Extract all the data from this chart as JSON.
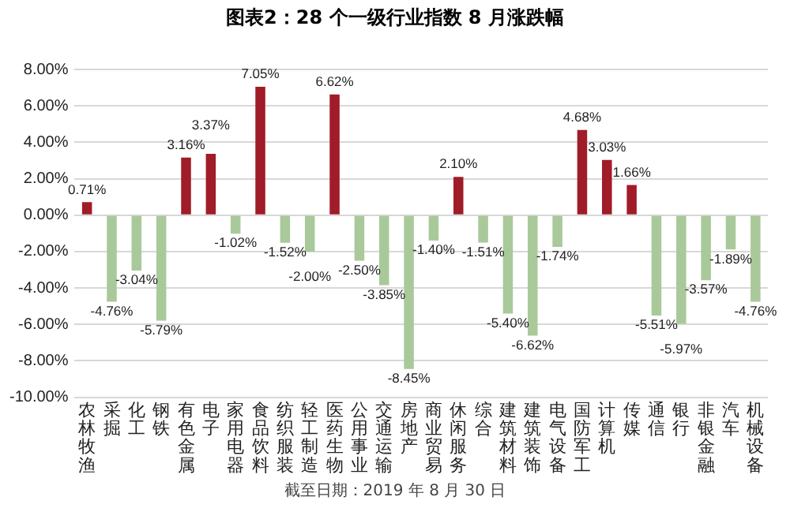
{
  "chart_data": {
    "type": "bar",
    "title": "图表2：28 个一级行业指数 8 月涨跌幅",
    "categories": [
      "农林牧渔",
      "采掘",
      "化工",
      "钢铁",
      "有色金属",
      "电子",
      "家用电器",
      "食品饮料",
      "纺织服装",
      "轻工制造",
      "医药生物",
      "公用事业",
      "交通运输",
      "房地产",
      "商业贸易",
      "休闲服务",
      "综合",
      "建筑材料",
      "建筑装饰",
      "电气设备",
      "国防军工",
      "计算机",
      "传媒",
      "通信",
      "银行",
      "非银金融",
      "汽车",
      "机械设备"
    ],
    "values": [
      0.71,
      -4.76,
      -3.04,
      -5.79,
      3.16,
      3.37,
      -1.02,
      7.05,
      -1.52,
      -2.0,
      6.62,
      -2.5,
      -3.85,
      -8.45,
      -1.4,
      2.1,
      -1.51,
      -5.4,
      -6.62,
      -1.74,
      4.68,
      3.03,
      1.66,
      -5.51,
      -5.97,
      -3.57,
      -1.89,
      -4.76
    ],
    "value_labels": [
      "0.71%",
      "-4.76%",
      "-3.04%",
      "-5.79%",
      "3.16%",
      "3.37%",
      "-1.02%",
      "7.05%",
      "-1.52%",
      "-2.00%",
      "6.62%",
      "-2.50%",
      "-3.85%",
      "-8.45%",
      "-1.40%",
      "2.10%",
      "-1.51%",
      "-5.40%",
      "-6.62%",
      "-1.74%",
      "4.68%",
      "3.03%",
      "1.66%",
      "-5.51%",
      "-5.97%",
      "-3.57%",
      "-1.89%",
      "-4.76%"
    ],
    "colors": [
      "#a01c28",
      "#a9c99a",
      "#a9c99a",
      "#a9c99a",
      "#a01c28",
      "#a01c28",
      "#a9c99a",
      "#a01c28",
      "#a9c99a",
      "#a9c99a",
      "#a01c28",
      "#a9c99a",
      "#a9c99a",
      "#a9c99a",
      "#a9c99a",
      "#a01c28",
      "#a9c99a",
      "#a9c99a",
      "#a9c99a",
      "#a9c99a",
      "#a01c28",
      "#a01c28",
      "#a01c28",
      "#a9c99a",
      "#a9c99a",
      "#a9c99a",
      "#a9c99a",
      "#a9c99a"
    ],
    "ylim": [
      -10,
      8
    ],
    "yticks": [
      {
        "value": -10,
        "label": "-10.00%"
      },
      {
        "value": -8,
        "label": "-8.00%"
      },
      {
        "value": -6,
        "label": "-6.00%"
      },
      {
        "value": -4,
        "label": "-4.00%"
      },
      {
        "value": -2,
        "label": "-2.00%"
      },
      {
        "value": 0,
        "label": "0.00%"
      },
      {
        "value": 2,
        "label": "2.00%"
      },
      {
        "value": 4,
        "label": "4.00%"
      },
      {
        "value": 6,
        "label": "6.00%"
      },
      {
        "value": 8,
        "label": "8.00%"
      }
    ],
    "grid": "y",
    "legend": false,
    "annotations": [
      "截至日期：2019 年 8 月 30 日"
    ]
  }
}
